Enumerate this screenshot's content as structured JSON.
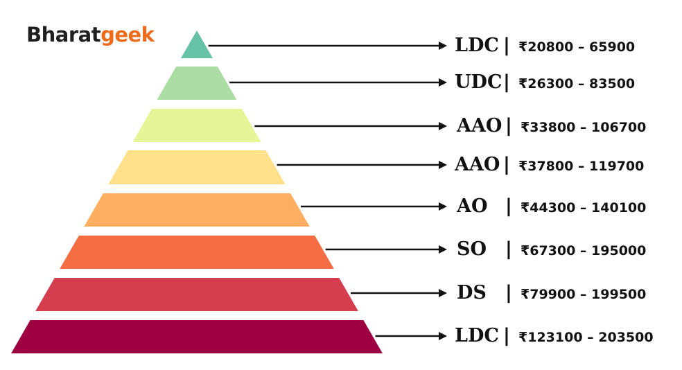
{
  "brand": {
    "part1": "Bharat",
    "part2": "geek"
  },
  "levels": [
    {
      "post": "LDC",
      "pay": "₹20800 – 65900",
      "color": "#66c2a5"
    },
    {
      "post": "UDC",
      "pay": "₹26300 – 83500",
      "color": "#abdda4"
    },
    {
      "post": "AAO",
      "pay": "₹33800 – 106700",
      "color": "#e6f598"
    },
    {
      "post": "AAO",
      "pay": "₹37800 – 119700",
      "color": "#fee08b"
    },
    {
      "post": "AO",
      "pay": "₹44300 – 140100",
      "color": "#fdae61"
    },
    {
      "post": "SO",
      "pay": "₹67300 – 195000",
      "color": "#f46d43"
    },
    {
      "post": "DS",
      "pay": "₹79900 – 199500",
      "color": "#d53e4f"
    },
    {
      "post": "LDC",
      "pay": "₹123100 – 203500",
      "color": "#9e0142"
    }
  ],
  "separator": "|"
}
